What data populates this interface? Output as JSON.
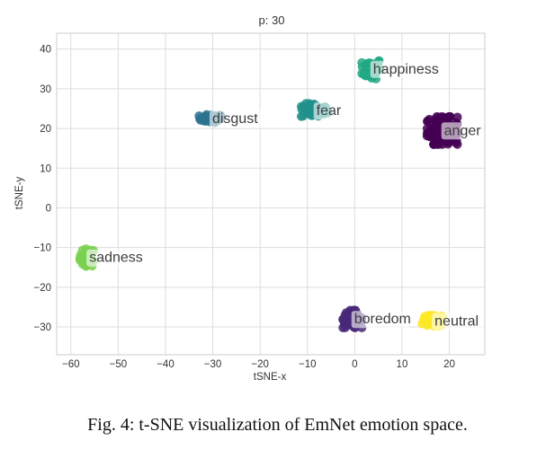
{
  "caption": "Fig. 4: t-SNE visualization of EmNet emotion space.",
  "chart_data": {
    "type": "scatter",
    "title": "p: 30",
    "xlabel": "tSNE-x",
    "ylabel": "tSNE-y",
    "xlim": [
      -63,
      27.5
    ],
    "ylim": [
      -37,
      44
    ],
    "grid": true,
    "xticks": [
      -60,
      -50,
      -40,
      -30,
      -20,
      -10,
      0,
      10,
      20
    ],
    "yticks": [
      -30,
      -20,
      -10,
      0,
      10,
      20,
      30,
      40
    ],
    "xtick_labels": [
      "−60",
      "−50",
      "−40",
      "−30",
      "−20",
      "−10",
      "0",
      "10",
      "20"
    ],
    "ytick_labels": [
      "−30",
      "−20",
      "−10",
      "0",
      "10",
      "20",
      "30",
      "40"
    ],
    "clusters": [
      {
        "label": "sadness",
        "color": "#7ad151",
        "center": [
          -56.5,
          -12.5
        ],
        "spread": [
          1.6,
          2.2
        ],
        "points": 42
      },
      {
        "label": "disgust",
        "color": "#2c728e",
        "center": [
          -30.5,
          22.5
        ],
        "spread": [
          2.4,
          1.0
        ],
        "points": 34
      },
      {
        "label": "fear",
        "color": "#21918c",
        "center": [
          -8.5,
          24.5
        ],
        "spread": [
          2.8,
          1.8
        ],
        "points": 50
      },
      {
        "label": "happiness",
        "color": "#22a884",
        "center": [
          3.5,
          35.0
        ],
        "spread": [
          2.0,
          2.5
        ],
        "points": 58
      },
      {
        "label": "anger",
        "color": "#440154",
        "center": [
          18.5,
          19.5
        ],
        "spread": [
          3.2,
          3.5
        ],
        "points": 120
      },
      {
        "label": "boredom",
        "color": "#482878",
        "center": [
          -0.5,
          -28.0
        ],
        "spread": [
          2.0,
          2.2
        ],
        "points": 70
      },
      {
        "label": "neutral",
        "color": "#fde725",
        "center": [
          16.5,
          -28.5
        ],
        "spread": [
          2.3,
          1.4
        ],
        "points": 65
      }
    ]
  }
}
